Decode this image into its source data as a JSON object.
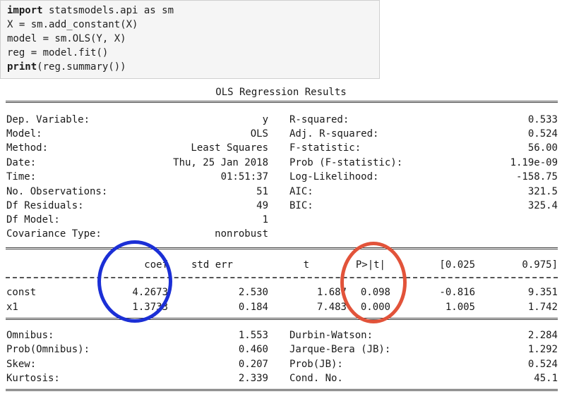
{
  "code_cell": {
    "lines": [
      {
        "kw": "import",
        "rest": " statsmodels.api as sm"
      },
      {
        "kw": "",
        "rest": "X = sm.add_constant(X)"
      },
      {
        "kw": "",
        "rest": "model = sm.OLS(Y, X)"
      },
      {
        "kw": "",
        "rest": "reg = model.fit()"
      },
      {
        "kw": "print",
        "rest": "(reg.summary())"
      }
    ]
  },
  "summary": {
    "title": "OLS Regression Results",
    "top_left": [
      {
        "label": "Dep. Variable:",
        "value": "y"
      },
      {
        "label": "Model:",
        "value": "OLS"
      },
      {
        "label": "Method:",
        "value": "Least Squares"
      },
      {
        "label": "Date:",
        "value": "Thu, 25 Jan 2018"
      },
      {
        "label": "Time:",
        "value": "01:51:37"
      },
      {
        "label": "No. Observations:",
        "value": "51"
      },
      {
        "label": "Df Residuals:",
        "value": "49"
      },
      {
        "label": "Df Model:",
        "value": "1"
      },
      {
        "label": "Covariance Type:",
        "value": "nonrobust"
      }
    ],
    "top_right": [
      {
        "label": "R-squared:",
        "value": "0.533"
      },
      {
        "label": "Adj. R-squared:",
        "value": "0.524"
      },
      {
        "label": "F-statistic:",
        "value": "56.00"
      },
      {
        "label": "Prob (F-statistic):",
        "value": "1.19e-09"
      },
      {
        "label": "Log-Likelihood:",
        "value": "-158.75"
      },
      {
        "label": "AIC:",
        "value": "321.5"
      },
      {
        "label": "BIC:",
        "value": "325.4"
      }
    ],
    "coef_headers": [
      "coef",
      "std err",
      "t",
      "P>|t|",
      "[0.025",
      "0.975]"
    ],
    "coef_rows": [
      {
        "name": "const",
        "cells": [
          "4.2673",
          "2.530",
          "1.687",
          "0.098",
          "-0.816",
          "9.351"
        ]
      },
      {
        "name": "x1",
        "cells": [
          "1.3733",
          "0.184",
          "7.483",
          "0.000",
          "1.005",
          "1.742"
        ]
      }
    ],
    "bottom_left": [
      {
        "label": "Omnibus:",
        "value": "1.553"
      },
      {
        "label": "Prob(Omnibus):",
        "value": "0.460"
      },
      {
        "label": "Skew:",
        "value": "0.207"
      },
      {
        "label": "Kurtosis:",
        "value": "2.339"
      }
    ],
    "bottom_right": [
      {
        "label": "Durbin-Watson:",
        "value": "2.284"
      },
      {
        "label": "Jarque-Bera (JB):",
        "value": "1.292"
      },
      {
        "label": "Prob(JB):",
        "value": "0.524"
      },
      {
        "label": "Cond. No.",
        "value": "45.1"
      }
    ]
  },
  "annotations": {
    "coef_circle_color": "#1b2fd6",
    "pvalue_circle_color": "#e2533a"
  }
}
